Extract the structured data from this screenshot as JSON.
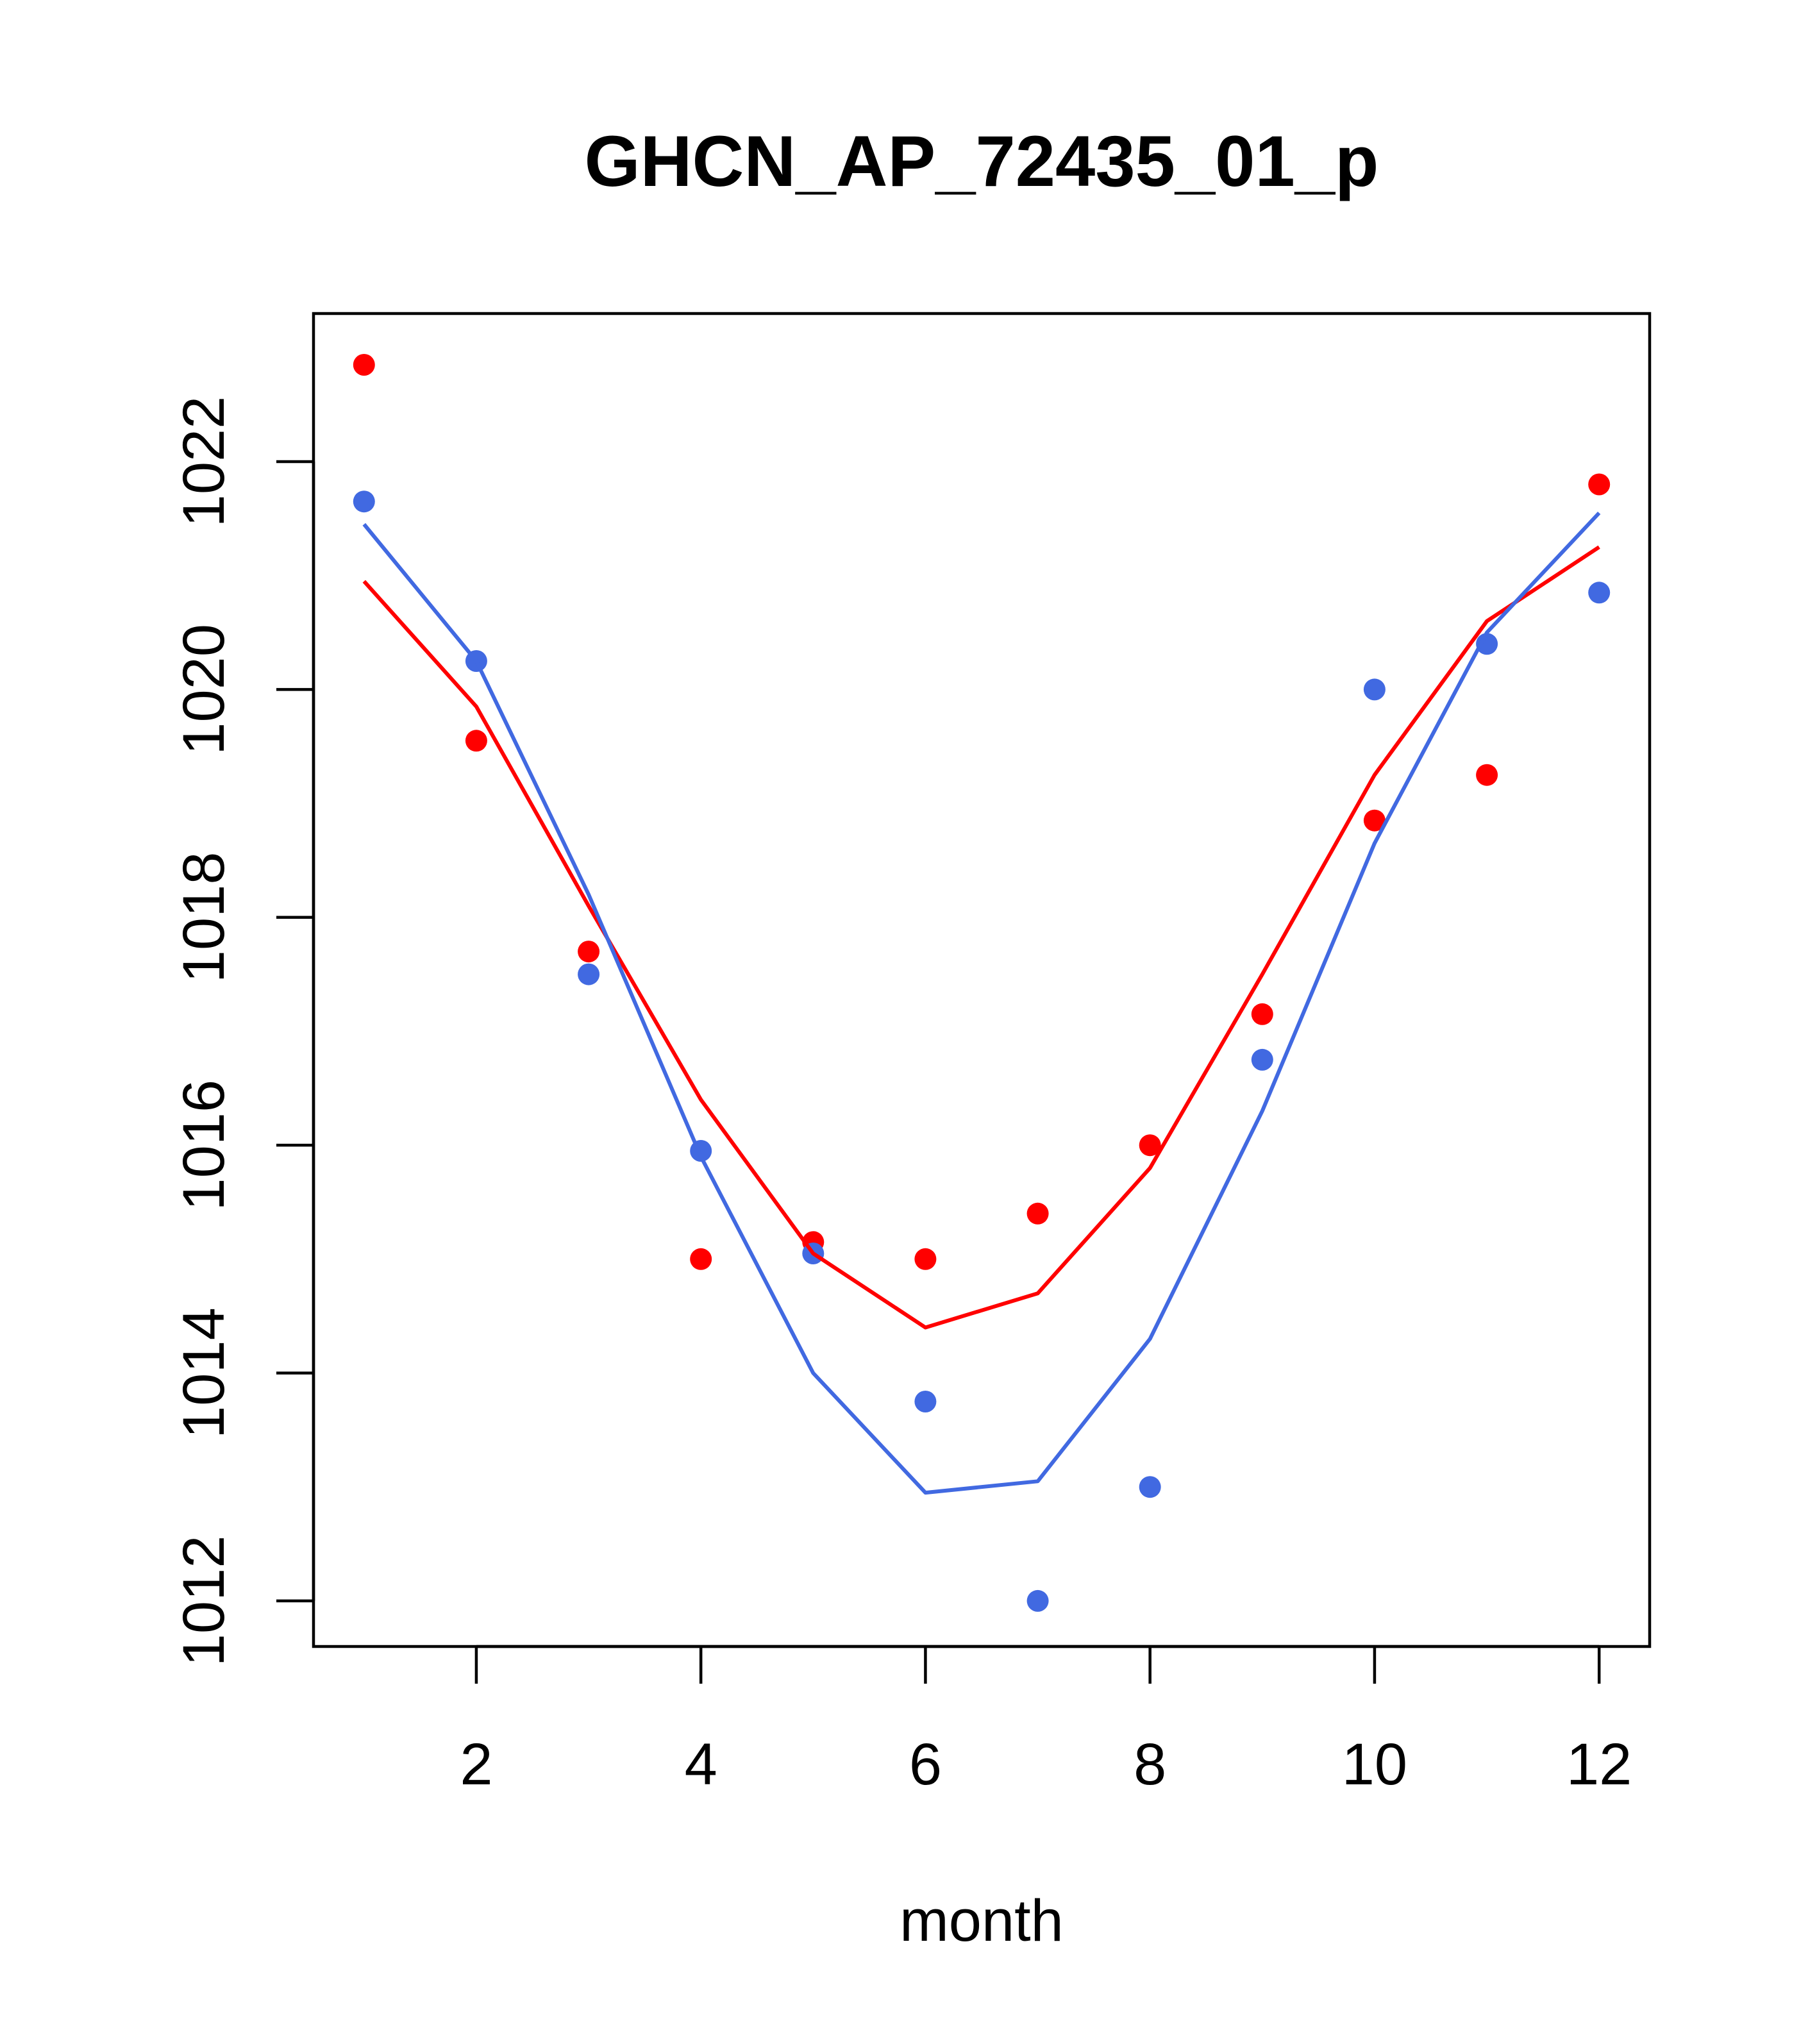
{
  "chart_data": {
    "type": "scatter",
    "title": "GHCN_AP_72435_01_p",
    "xlabel": "month",
    "ylabel": "",
    "xlim": [
      0.55,
      12.45
    ],
    "ylim": [
      1011.6,
      1023.3
    ],
    "x_ticks": [
      2,
      4,
      6,
      8,
      10,
      12
    ],
    "y_ticks": [
      1012,
      1014,
      1016,
      1018,
      1020,
      1022
    ],
    "x_tick_labels": [
      "2",
      "4",
      "6",
      "8",
      "10",
      "12"
    ],
    "y_tick_labels": [
      "1012",
      "1014",
      "1016",
      "1018",
      "1020",
      "1022"
    ],
    "grid": false,
    "legend": null,
    "series": [
      {
        "name": "red points",
        "kind": "points",
        "color": "#ff0000",
        "x": [
          1,
          2,
          3,
          4,
          5,
          6,
          7,
          8,
          9,
          10,
          11,
          12
        ],
        "y": [
          1022.85,
          1019.55,
          1017.7,
          1015.0,
          1015.15,
          1015.0,
          1015.4,
          1016.0,
          1017.15,
          1018.85,
          1019.25,
          1021.8
        ]
      },
      {
        "name": "blue points",
        "kind": "points",
        "color": "#4169e1",
        "x": [
          1,
          2,
          3,
          4,
          5,
          6,
          7,
          8,
          9,
          10,
          11,
          12
        ],
        "y": [
          1021.65,
          1020.25,
          1017.5,
          1015.95,
          1015.05,
          1013.75,
          1012.0,
          1013.0,
          1016.75,
          1020.0,
          1020.4,
          1020.85
        ]
      },
      {
        "name": "red fit",
        "kind": "line",
        "color": "#ff0000",
        "x": [
          1,
          2,
          3,
          4,
          5,
          6,
          7,
          8,
          9,
          10,
          11,
          12
        ],
        "y": [
          1020.95,
          1019.85,
          1018.1,
          1016.4,
          1015.05,
          1014.4,
          1014.7,
          1015.8,
          1017.5,
          1019.25,
          1020.6,
          1021.25
        ]
      },
      {
        "name": "blue fit",
        "kind": "line",
        "color": "#4169e1",
        "x": [
          1,
          2,
          3,
          4,
          5,
          6,
          7,
          8,
          9,
          10,
          11,
          12
        ],
        "y": [
          1021.45,
          1020.25,
          1018.2,
          1015.9,
          1014.0,
          1012.95,
          1013.05,
          1014.3,
          1016.3,
          1018.65,
          1020.5,
          1021.55
        ]
      }
    ]
  }
}
